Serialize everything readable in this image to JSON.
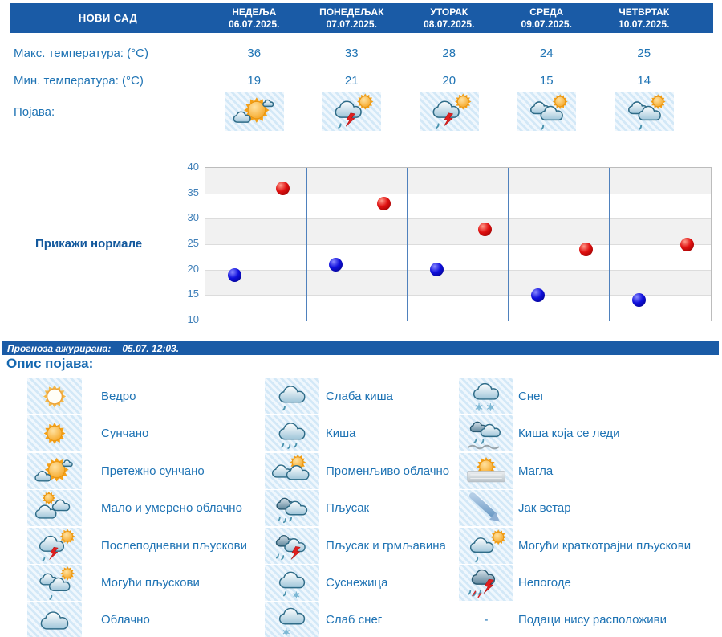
{
  "header": {
    "location": "НОВИ САД",
    "days": [
      {
        "name": "НЕДЕЉА",
        "date": "06.07.2025."
      },
      {
        "name": "ПОНЕДЕЉАК",
        "date": "07.07.2025."
      },
      {
        "name": "УТОРАК",
        "date": "08.07.2025."
      },
      {
        "name": "СРЕДА",
        "date": "09.07.2025."
      },
      {
        "name": "ЧЕТВРТАК",
        "date": "10.07.2025."
      }
    ]
  },
  "table": {
    "max_label": "Макс. температура: (°C)",
    "min_label": "Мин. температура: (°C)",
    "phenomenon_label": "Појава:",
    "max_values": [
      36,
      33,
      28,
      24,
      25
    ],
    "min_values": [
      19,
      21,
      20,
      15,
      14
    ],
    "day_icons": [
      "pretezno-suncano",
      "poslepodnevni-pljuskovi",
      "poslepodnevni-pljuskovi",
      "moguci-pljuskovi",
      "moguci-pljuskovi"
    ]
  },
  "chart": {
    "normals_link": "Прикажи нормале"
  },
  "chart_data": {
    "type": "scatter",
    "categories": [
      "06.07.2025.",
      "07.07.2025.",
      "08.07.2025.",
      "09.07.2025.",
      "10.07.2025."
    ],
    "series": [
      {
        "name": "Максимална температура",
        "color": "#cc0000",
        "values": [
          36,
          33,
          28,
          24,
          25
        ]
      },
      {
        "name": "Минимална температура",
        "color": "#0000cc",
        "values": [
          19,
          21,
          20,
          15,
          14
        ]
      }
    ],
    "ylim": [
      10,
      40
    ],
    "ytick_step": 5,
    "grid": true,
    "legend_position": "none",
    "band_colors": [
      "#f1f1f1",
      "#ffffff"
    ],
    "separator_color": "#4f81bd"
  },
  "status_bar": {
    "label": "Прогноза ажурирана:",
    "value": "05.07. 12:03."
  },
  "legend": {
    "title": "Опис појава:",
    "no_data_symbol": "-",
    "columns": [
      [
        {
          "icon": "vedro",
          "label": "Ведро"
        },
        {
          "icon": "suncano",
          "label": "Сунчано"
        },
        {
          "icon": "pretezno-suncano",
          "label": "Претежно сунчано"
        },
        {
          "icon": "malo-umereno-oblacno",
          "label": "Мало и умерено облачно"
        },
        {
          "icon": "poslepodnevni-pljuskovi",
          "label": "Послеподневни пљускови"
        },
        {
          "icon": "moguci-pljuskovi",
          "label": "Могући пљускови"
        },
        {
          "icon": "oblacno",
          "label": "Облачно"
        }
      ],
      [
        {
          "icon": "slaba-kisa",
          "label": "Слаба киша"
        },
        {
          "icon": "kisa",
          "label": "Киша"
        },
        {
          "icon": "promenljivo-oblacno",
          "label": "Променљиво облачно"
        },
        {
          "icon": "pljusak",
          "label": "Пљусак"
        },
        {
          "icon": "pljusak-i-grmljavina",
          "label": "Пљусак и грмљавина"
        },
        {
          "icon": "susnezica",
          "label": "Суснежица"
        },
        {
          "icon": "slab-sneg",
          "label": "Слаб снег"
        }
      ],
      [
        {
          "icon": "sneg",
          "label": "Снег"
        },
        {
          "icon": "kisa-koja-se-ledi",
          "label": "Киша која се леди"
        },
        {
          "icon": "magla",
          "label": "Магла"
        },
        {
          "icon": "jak-vetar",
          "label": "Јак ветар"
        },
        {
          "icon": "moguci-kratkotrajni-pljuskovi",
          "label": "Могући краткотрајни пљускови"
        },
        {
          "icon": "nepogode",
          "label": "Непогоде"
        },
        {
          "icon": "none",
          "label": "Подаци нису расположиви"
        }
      ]
    ]
  },
  "colors": {
    "header_bg": "#1a5ba6",
    "text_blue": "#1e73b4",
    "link_blue": "#14599d",
    "max_dot": "#cc0000",
    "min_dot": "#0000cc"
  }
}
